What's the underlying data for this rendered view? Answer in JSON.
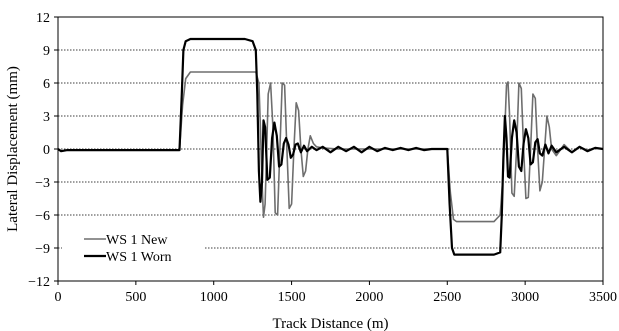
{
  "chart_data": {
    "type": "line",
    "xlabel": "Track Distance (m)",
    "ylabel": "Lateral Displacement (mm)",
    "xlim": [
      0,
      3500
    ],
    "ylim": [
      -12,
      12
    ],
    "xticks": [
      0,
      500,
      1000,
      1500,
      2000,
      2500,
      3000,
      3500
    ],
    "yticks": [
      -12,
      -9,
      -6,
      -3,
      0,
      3,
      6,
      9,
      12
    ],
    "grid": "horizontal dotted",
    "legend_position": "bottom-left",
    "series": [
      {
        "name": "WS 1 New",
        "color": "#6e6e6e",
        "x": [
          0,
          20,
          60,
          100,
          200,
          400,
          600,
          780,
          800,
          820,
          850,
          1000,
          1200,
          1270,
          1290,
          1300,
          1310,
          1320,
          1330,
          1340,
          1350,
          1365,
          1380,
          1395,
          1410,
          1425,
          1440,
          1455,
          1470,
          1485,
          1500,
          1515,
          1530,
          1545,
          1560,
          1575,
          1590,
          1605,
          1620,
          1640,
          1660,
          1700,
          1800,
          1900,
          2000,
          2100,
          2200,
          2300,
          2400,
          2500,
          2520,
          2540,
          2560,
          2600,
          2700,
          2800,
          2840,
          2860,
          2870,
          2880,
          2890,
          2900,
          2915,
          2930,
          2945,
          2960,
          2975,
          2990,
          3005,
          3020,
          3035,
          3050,
          3065,
          3080,
          3095,
          3110,
          3125,
          3140,
          3155,
          3170,
          3200,
          3250,
          3300,
          3350,
          3400,
          3450,
          3500
        ],
        "y": [
          0,
          -0.2,
          -0.1,
          -0.1,
          -0.1,
          -0.1,
          -0.1,
          -0.1,
          4.0,
          6.4,
          7.0,
          7.0,
          7.0,
          7.0,
          6.0,
          2.0,
          -3.0,
          -6.2,
          -5.0,
          0.0,
          5.0,
          6.0,
          2.0,
          -5.8,
          -6.0,
          0.0,
          6.0,
          5.8,
          0.0,
          -5.4,
          -5.0,
          0.0,
          4.2,
          3.5,
          0.0,
          -2.5,
          -2.0,
          0.0,
          1.2,
          0.5,
          0.2,
          0.1,
          0.0,
          0.0,
          0.0,
          0.0,
          0.0,
          0.0,
          0.0,
          0.0,
          -4.0,
          -6.4,
          -6.6,
          -6.6,
          -6.6,
          -6.6,
          -6.0,
          -2.0,
          2.0,
          5.8,
          6.1,
          3.0,
          -4.0,
          -4.3,
          0.0,
          6.0,
          5.5,
          0.0,
          -4.5,
          -4.4,
          0.0,
          5.0,
          4.6,
          0.0,
          -3.8,
          -3.0,
          0.0,
          3.0,
          2.0,
          0.0,
          -0.6,
          0.4,
          -0.3,
          0.2,
          -0.1,
          0.1,
          0.0
        ]
      },
      {
        "name": "WS 1 Worn",
        "color": "#000000",
        "x": [
          0,
          20,
          60,
          100,
          200,
          400,
          600,
          780,
          795,
          805,
          820,
          850,
          1000,
          1200,
          1250,
          1270,
          1280,
          1290,
          1300,
          1310,
          1320,
          1330,
          1345,
          1360,
          1375,
          1390,
          1405,
          1420,
          1435,
          1450,
          1465,
          1480,
          1495,
          1510,
          1525,
          1540,
          1560,
          1580,
          1600,
          1630,
          1660,
          1700,
          1750,
          1800,
          1850,
          1900,
          1950,
          2000,
          2050,
          2100,
          2150,
          2200,
          2250,
          2300,
          2350,
          2400,
          2450,
          2500,
          2515,
          2530,
          2545,
          2560,
          2600,
          2700,
          2800,
          2840,
          2850,
          2860,
          2870,
          2880,
          2890,
          2900,
          2915,
          2930,
          2945,
          2960,
          2975,
          2990,
          3005,
          3020,
          3035,
          3050,
          3065,
          3080,
          3095,
          3110,
          3130,
          3150,
          3170,
          3200,
          3250,
          3300,
          3350,
          3400,
          3450,
          3500
        ],
        "y": [
          0,
          -0.2,
          -0.1,
          -0.1,
          -0.1,
          -0.1,
          -0.1,
          -0.1,
          5.0,
          9.0,
          9.8,
          10.0,
          10.0,
          10.0,
          9.8,
          9.0,
          5.0,
          -2.0,
          -4.8,
          -3.0,
          2.6,
          2.0,
          -2.8,
          -2.6,
          1.0,
          2.4,
          1.2,
          -1.6,
          -1.4,
          0.5,
          1.0,
          0.4,
          -0.8,
          -0.5,
          0.4,
          0.5,
          -0.3,
          0.3,
          -0.2,
          0.2,
          -0.1,
          0.2,
          -0.3,
          0.2,
          -0.2,
          0.2,
          -0.3,
          0.2,
          -0.2,
          0.1,
          -0.1,
          0.1,
          -0.1,
          0.1,
          -0.1,
          0.0,
          0.0,
          0.0,
          -5.0,
          -9.0,
          -9.6,
          -9.6,
          -9.6,
          -9.6,
          -9.6,
          -9.4,
          -6.0,
          -1.0,
          3.0,
          1.0,
          -2.5,
          -2.6,
          1.0,
          2.6,
          1.5,
          -1.6,
          -2.0,
          0.5,
          1.8,
          1.0,
          -1.4,
          -1.2,
          0.6,
          0.9,
          -0.4,
          -0.6,
          0.4,
          -0.4,
          0.3,
          -0.3,
          0.2,
          -0.3,
          0.2,
          -0.2,
          0.1,
          0.0
        ]
      }
    ]
  }
}
